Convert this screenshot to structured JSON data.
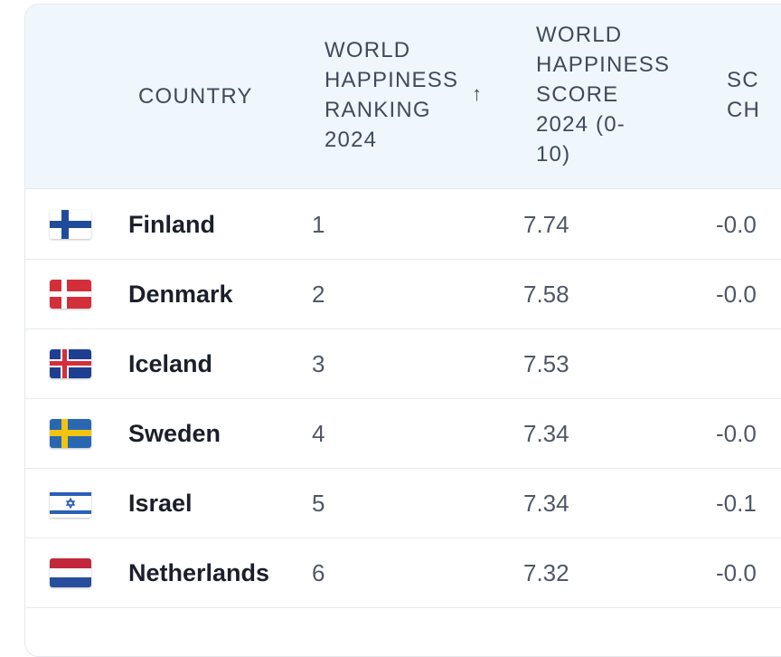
{
  "table": {
    "headers": {
      "country": "COUNTRY",
      "rank_lines": [
        "WORLD",
        "HAPPINESS",
        "RANKING",
        "2024"
      ],
      "score_lines": [
        "WORLD",
        "HAPPINESS",
        "SCORE",
        "2024 (0-",
        "10)"
      ],
      "change_lines": [
        "SC",
        "CH"
      ],
      "sort_icon": "arrow-up-icon"
    },
    "rows": [
      {
        "flag": "finland-flag-icon",
        "country": "Finland",
        "rank": "1",
        "score": "7.74",
        "change": "-0.0"
      },
      {
        "flag": "denmark-flag-icon",
        "country": "Denmark",
        "rank": "2",
        "score": "7.58",
        "change": "-0.0"
      },
      {
        "flag": "iceland-flag-icon",
        "country": "Iceland",
        "rank": "3",
        "score": "7.53",
        "change": ""
      },
      {
        "flag": "sweden-flag-icon",
        "country": "Sweden",
        "rank": "4",
        "score": "7.34",
        "change": "-0.0"
      },
      {
        "flag": "israel-flag-icon",
        "country": "Israel",
        "rank": "5",
        "score": "7.34",
        "change": "-0.1"
      },
      {
        "flag": "netherlands-flag-icon",
        "country": "Netherlands",
        "rank": "6",
        "score": "7.32",
        "change": "-0.0"
      }
    ]
  },
  "colors": {
    "header_bg": "#eff7fd",
    "header_text": "#3f4a5a",
    "body_text": "#505866",
    "country_text": "#1a1f2b"
  }
}
